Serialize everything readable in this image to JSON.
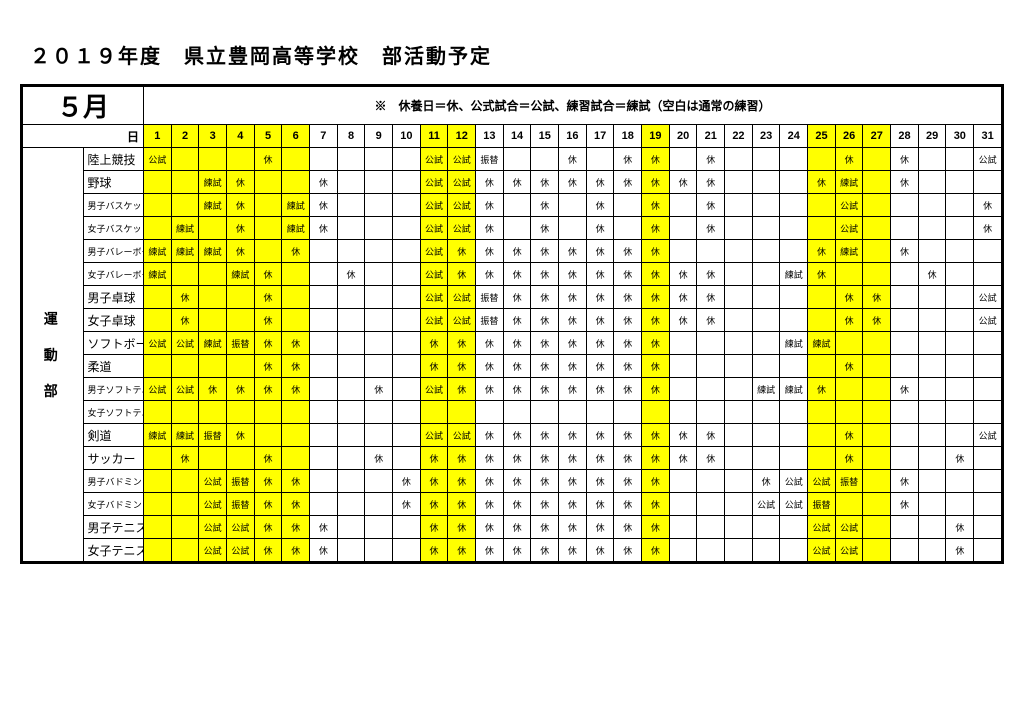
{
  "title": "２０１９年度　県立豊岡高等学校　部活動予定",
  "month": "５月",
  "legend": "※　休養日＝休、公式試合＝公試、練習試合＝練試（空白は通常の練習）",
  "day_label": "日",
  "side_label": "運 動 部",
  "highlight_days": [
    1,
    2,
    3,
    4,
    5,
    6,
    11,
    12,
    19,
    25,
    26,
    27
  ],
  "days": [
    1,
    2,
    3,
    4,
    5,
    6,
    7,
    8,
    9,
    10,
    11,
    12,
    13,
    14,
    15,
    16,
    17,
    18,
    19,
    20,
    21,
    22,
    23,
    24,
    25,
    26,
    27,
    28,
    29,
    30,
    31
  ],
  "clubs": [
    {
      "name": "陸上競技",
      "small": false,
      "cells": [
        "公試",
        "",
        "",
        "",
        "休",
        "",
        "",
        "",
        "",
        "",
        "公試",
        "公試",
        "振替",
        "",
        "",
        "休",
        "",
        "休",
        "休",
        "",
        "休",
        "",
        "",
        "",
        "",
        "休",
        "",
        "休",
        "",
        "",
        "公試"
      ]
    },
    {
      "name": "野球",
      "small": false,
      "cells": [
        "",
        "",
        "練試",
        "休",
        "",
        "",
        "休",
        "",
        "",
        "",
        "公試",
        "公試",
        "休",
        "休",
        "休",
        "休",
        "休",
        "休",
        "休",
        "休",
        "休",
        "",
        "",
        "",
        "休",
        "練試",
        "",
        "休",
        "",
        "",
        ""
      ]
    },
    {
      "name": "男子バスケットボール",
      "small": true,
      "cells": [
        "",
        "",
        "練試",
        "休",
        "",
        "練試",
        "休",
        "",
        "",
        "",
        "公試",
        "公試",
        "休",
        "",
        "休",
        "",
        "休",
        "",
        "休",
        "",
        "休",
        "",
        "",
        "",
        "",
        "公試",
        "",
        "",
        "",
        "",
        "休"
      ]
    },
    {
      "name": "女子バスケットボール",
      "small": true,
      "cells": [
        "",
        "練試",
        "",
        "休",
        "",
        "練試",
        "休",
        "",
        "",
        "",
        "公試",
        "公試",
        "休",
        "",
        "休",
        "",
        "休",
        "",
        "休",
        "",
        "休",
        "",
        "",
        "",
        "",
        "公試",
        "",
        "",
        "",
        "",
        "休"
      ]
    },
    {
      "name": "男子バレーボール",
      "small": true,
      "cells": [
        "練試",
        "練試",
        "練試",
        "休",
        "",
        "休",
        "",
        "",
        "",
        "",
        "公試",
        "休",
        "休",
        "休",
        "休",
        "休",
        "休",
        "休",
        "休",
        "",
        "",
        "",
        "",
        "",
        "休",
        "練試",
        "",
        "休",
        "",
        "",
        ""
      ]
    },
    {
      "name": "女子バレーボール",
      "small": true,
      "cells": [
        "練試",
        "",
        "",
        "練試",
        "休",
        "",
        "",
        "休",
        "",
        "",
        "公試",
        "休",
        "休",
        "休",
        "休",
        "休",
        "休",
        "休",
        "休",
        "休",
        "休",
        "",
        "",
        "練試",
        "休",
        "",
        "",
        "",
        "休",
        "",
        ""
      ]
    },
    {
      "name": "男子卓球",
      "small": false,
      "cells": [
        "",
        "休",
        "",
        "",
        "休",
        "",
        "",
        "",
        "",
        "",
        "公試",
        "公試",
        "振替",
        "休",
        "休",
        "休",
        "休",
        "休",
        "休",
        "休",
        "休",
        "",
        "",
        "",
        "",
        "休",
        "休",
        "",
        "",
        "",
        "公試"
      ]
    },
    {
      "name": "女子卓球",
      "small": false,
      "cells": [
        "",
        "休",
        "",
        "",
        "休",
        "",
        "",
        "",
        "",
        "",
        "公試",
        "公試",
        "振替",
        "休",
        "休",
        "休",
        "休",
        "休",
        "休",
        "休",
        "休",
        "",
        "",
        "",
        "",
        "休",
        "休",
        "",
        "",
        "",
        "公試"
      ]
    },
    {
      "name": "ソフトボール",
      "small": false,
      "cells": [
        "公試",
        "公試",
        "練試",
        "振替",
        "休",
        "休",
        "",
        "",
        "",
        "",
        "休",
        "休",
        "休",
        "休",
        "休",
        "休",
        "休",
        "休",
        "休",
        "",
        "",
        "",
        "",
        "練試",
        "練試",
        "",
        "",
        "",
        "",
        "",
        ""
      ]
    },
    {
      "name": "柔道",
      "small": false,
      "cells": [
        "",
        "",
        "",
        "",
        "休",
        "休",
        "",
        "",
        "",
        "",
        "休",
        "休",
        "休",
        "休",
        "休",
        "休",
        "休",
        "休",
        "休",
        "",
        "",
        "",
        "",
        "",
        "",
        "休",
        "",
        "",
        "",
        "",
        ""
      ]
    },
    {
      "name": "男子ソフトテニス",
      "small": true,
      "cells": [
        "公試",
        "公試",
        "休",
        "休",
        "休",
        "休",
        "",
        "",
        "休",
        "",
        "公試",
        "休",
        "休",
        "休",
        "休",
        "休",
        "休",
        "休",
        "休",
        "",
        "",
        "",
        "練試",
        "練試",
        "休",
        "",
        "",
        "休",
        "",
        "",
        ""
      ]
    },
    {
      "name": "女子ソフトテニス",
      "small": true,
      "cells": [
        "",
        "",
        "",
        "",
        "",
        "",
        "",
        "",
        "",
        "",
        "",
        "",
        "",
        "",
        "",
        "",
        "",
        "",
        "",
        "",
        "",
        "",
        "",
        "",
        "",
        "",
        "",
        "",
        "",
        "",
        ""
      ]
    },
    {
      "name": "剣道",
      "small": false,
      "cells": [
        "練試",
        "練試",
        "振替",
        "休",
        "",
        "",
        "",
        "",
        "",
        "",
        "公試",
        "公試",
        "休",
        "休",
        "休",
        "休",
        "休",
        "休",
        "休",
        "休",
        "休",
        "",
        "",
        "",
        "",
        "休",
        "",
        "",
        "",
        "",
        "公試"
      ]
    },
    {
      "name": "サッカー",
      "small": false,
      "cells": [
        "",
        "休",
        "",
        "",
        "休",
        "",
        "",
        "",
        "休",
        "",
        "休",
        "休",
        "休",
        "休",
        "休",
        "休",
        "休",
        "休",
        "休",
        "休",
        "休",
        "",
        "",
        "",
        "",
        "休",
        "",
        "",
        "",
        "休",
        ""
      ]
    },
    {
      "name": "男子バドミントン",
      "small": true,
      "cells": [
        "",
        "",
        "公試",
        "振替",
        "休",
        "休",
        "",
        "",
        "",
        "休",
        "休",
        "休",
        "休",
        "休",
        "休",
        "休",
        "休",
        "休",
        "休",
        "",
        "",
        "",
        "休",
        "公試",
        "公試",
        "振替",
        "",
        "休",
        "",
        "",
        ""
      ]
    },
    {
      "name": "女子バドミントン",
      "small": true,
      "cells": [
        "",
        "",
        "公試",
        "振替",
        "休",
        "休",
        "",
        "",
        "",
        "休",
        "休",
        "休",
        "休",
        "休",
        "休",
        "休",
        "休",
        "休",
        "休",
        "",
        "",
        "",
        "公試",
        "公試",
        "振替",
        "",
        "",
        "休",
        "",
        "",
        ""
      ]
    },
    {
      "name": "男子テニス",
      "small": false,
      "cells": [
        "",
        "",
        "公試",
        "公試",
        "休",
        "休",
        "休",
        "",
        "",
        "",
        "休",
        "休",
        "休",
        "休",
        "休",
        "休",
        "休",
        "休",
        "休",
        "",
        "",
        "",
        "",
        "",
        "公試",
        "公試",
        "",
        "",
        "",
        "休",
        ""
      ]
    },
    {
      "name": "女子テニス",
      "small": false,
      "cells": [
        "",
        "",
        "公試",
        "公試",
        "休",
        "休",
        "休",
        "",
        "",
        "",
        "休",
        "休",
        "休",
        "休",
        "休",
        "休",
        "休",
        "休",
        "休",
        "",
        "",
        "",
        "",
        "",
        "公試",
        "公試",
        "",
        "",
        "",
        "休",
        ""
      ]
    }
  ]
}
